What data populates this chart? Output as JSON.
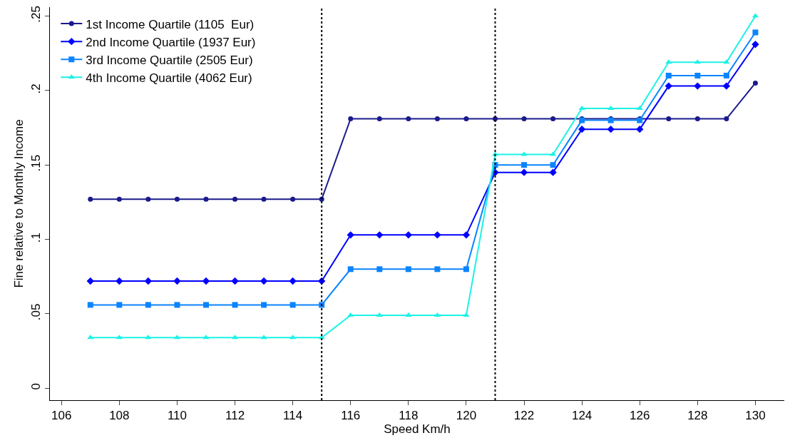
{
  "chart_data": {
    "type": "line",
    "xlabel": "Speed Km/h",
    "ylabel": "Fine relative to Monthly Income",
    "x": [
      107,
      108,
      109,
      110,
      111,
      112,
      113,
      114,
      115,
      116,
      117,
      118,
      119,
      120,
      121,
      122,
      123,
      124,
      125,
      126,
      127,
      128,
      129,
      130
    ],
    "series": [
      {
        "name": "1st Income Quartile (1105  Eur)",
        "color": "#1a1a8c",
        "marker": "circle",
        "values": [
          0.127,
          0.127,
          0.127,
          0.127,
          0.127,
          0.127,
          0.127,
          0.127,
          0.127,
          0.181,
          0.181,
          0.181,
          0.181,
          0.181,
          0.181,
          0.181,
          0.181,
          0.181,
          0.181,
          0.181,
          0.181,
          0.181,
          0.181,
          0.205
        ]
      },
      {
        "name": "2nd Income Quartile (1937 Eur)",
        "color": "#0000ff",
        "marker": "diamond",
        "values": [
          0.072,
          0.072,
          0.072,
          0.072,
          0.072,
          0.072,
          0.072,
          0.072,
          0.072,
          0.103,
          0.103,
          0.103,
          0.103,
          0.103,
          0.145,
          0.145,
          0.145,
          0.174,
          0.174,
          0.174,
          0.203,
          0.203,
          0.203,
          0.231
        ]
      },
      {
        "name": "3rd Income Quartile (2505 Eur)",
        "color": "#0a84ff",
        "marker": "square",
        "values": [
          0.056,
          0.056,
          0.056,
          0.056,
          0.056,
          0.056,
          0.056,
          0.056,
          0.056,
          0.08,
          0.08,
          0.08,
          0.08,
          0.08,
          0.15,
          0.15,
          0.15,
          0.18,
          0.18,
          0.18,
          0.21,
          0.21,
          0.21,
          0.239
        ]
      },
      {
        "name": "4th Income Quartile (4062 Eur)",
        "color": "#1cf2e6",
        "marker": "triangle",
        "values": [
          0.034,
          0.034,
          0.034,
          0.034,
          0.034,
          0.034,
          0.034,
          0.034,
          0.034,
          0.049,
          0.049,
          0.049,
          0.049,
          0.049,
          0.157,
          0.157,
          0.157,
          0.188,
          0.188,
          0.188,
          0.219,
          0.219,
          0.219,
          0.25
        ]
      }
    ],
    "xlim": [
      105.6,
      131
    ],
    "xticks": [
      106,
      108,
      110,
      112,
      114,
      116,
      118,
      120,
      122,
      124,
      126,
      128,
      130
    ],
    "ylim": [
      -0.008,
      0.256
    ],
    "yticks": [
      {
        "value": 0,
        "label": "0"
      },
      {
        "value": 0.05,
        "label": ".05"
      },
      {
        "value": 0.1,
        "label": ".1"
      },
      {
        "value": 0.15,
        "label": ".15"
      },
      {
        "value": 0.2,
        "label": ".2"
      },
      {
        "value": 0.25,
        "label": ".25"
      }
    ],
    "ref_lines": [
      {
        "axis": "x",
        "value": 115,
        "color": "#000000",
        "line_style": "dotted"
      },
      {
        "axis": "x",
        "value": 121,
        "color": "#000000",
        "line_style": "dotted"
      }
    ],
    "legend": "top left",
    "line_style": "solid"
  }
}
